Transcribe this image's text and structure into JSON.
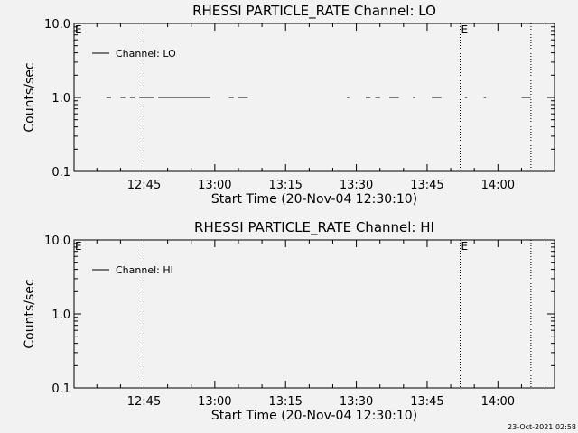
{
  "footer": {
    "timestamp": "23-Oct-2021 02:58"
  },
  "chart_data": [
    {
      "type": "line",
      "title": "RHESSI PARTICLE_RATE Channel: LO",
      "xlabel": "Start Time (20-Nov-04 12:30:10)",
      "ylabel": "Counts/sec",
      "yscale": "log",
      "ylim": [
        0.1,
        10.0
      ],
      "yticks": [
        {
          "value": 0.1,
          "label": "0.1"
        },
        {
          "value": 1.0,
          "label": "1.0"
        },
        {
          "value": 10.0,
          "label": "10.0"
        }
      ],
      "xlim": [
        "12:30:10",
        "14:12"
      ],
      "xticks": [
        "12:45",
        "13:00",
        "13:15",
        "13:30",
        "13:45",
        "14:00"
      ],
      "markers": [
        {
          "time": "12:45",
          "label": ""
        },
        {
          "time": "13:52",
          "label": "E"
        },
        {
          "time": "14:07",
          "label": ""
        }
      ],
      "edge_label": "E",
      "legend": {
        "label": "Channel: LO",
        "position": "top-left"
      },
      "series": [
        {
          "name": "Channel: LO",
          "segments": [
            {
              "start": "12:37",
              "end": "12:38",
              "y": 1.0
            },
            {
              "start": "12:40",
              "end": "12:41",
              "y": 1.0
            },
            {
              "start": "12:42",
              "end": "12:43",
              "y": 1.0
            },
            {
              "start": "12:44",
              "end": "12:47",
              "y": 1.0
            },
            {
              "start": "12:48",
              "end": "12:52",
              "y": 1.0
            },
            {
              "start": "12:52",
              "end": "12:56",
              "y": 1.0
            },
            {
              "start": "12:56",
              "end": "12:59",
              "y": 1.0
            },
            {
              "start": "13:03",
              "end": "13:04",
              "y": 1.0
            },
            {
              "start": "13:05",
              "end": "13:07",
              "y": 1.0
            },
            {
              "start": "13:28",
              "end": "13:28.5",
              "y": 1.0
            },
            {
              "start": "13:32",
              "end": "13:33",
              "y": 1.0
            },
            {
              "start": "13:34",
              "end": "13:35",
              "y": 1.0
            },
            {
              "start": "13:37",
              "end": "13:39",
              "y": 1.0
            },
            {
              "start": "13:42",
              "end": "13:42.5",
              "y": 1.0
            },
            {
              "start": "13:46",
              "end": "13:48",
              "y": 1.0
            },
            {
              "start": "13:53",
              "end": "13:53.5",
              "y": 1.0
            },
            {
              "start": "13:57",
              "end": "13:57.5",
              "y": 1.0
            },
            {
              "start": "14:05",
              "end": "14:07",
              "y": 1.0
            }
          ]
        }
      ]
    },
    {
      "type": "line",
      "title": "RHESSI PARTICLE_RATE Channel: HI",
      "xlabel": "Start Time (20-Nov-04 12:30:10)",
      "ylabel": "Counts/sec",
      "yscale": "log",
      "ylim": [
        0.1,
        10.0
      ],
      "yticks": [
        {
          "value": 0.1,
          "label": "0.1"
        },
        {
          "value": 1.0,
          "label": "1.0"
        },
        {
          "value": 10.0,
          "label": "10.0"
        }
      ],
      "xlim": [
        "12:30:10",
        "14:12"
      ],
      "xticks": [
        "12:45",
        "13:00",
        "13:15",
        "13:30",
        "13:45",
        "14:00"
      ],
      "markers": [
        {
          "time": "12:45",
          "label": ""
        },
        {
          "time": "13:52",
          "label": "E"
        },
        {
          "time": "14:07",
          "label": ""
        }
      ],
      "edge_label": "E",
      "legend": {
        "label": "Channel: HI",
        "position": "top-left"
      },
      "series": [
        {
          "name": "Channel: HI",
          "segments": []
        }
      ]
    }
  ]
}
